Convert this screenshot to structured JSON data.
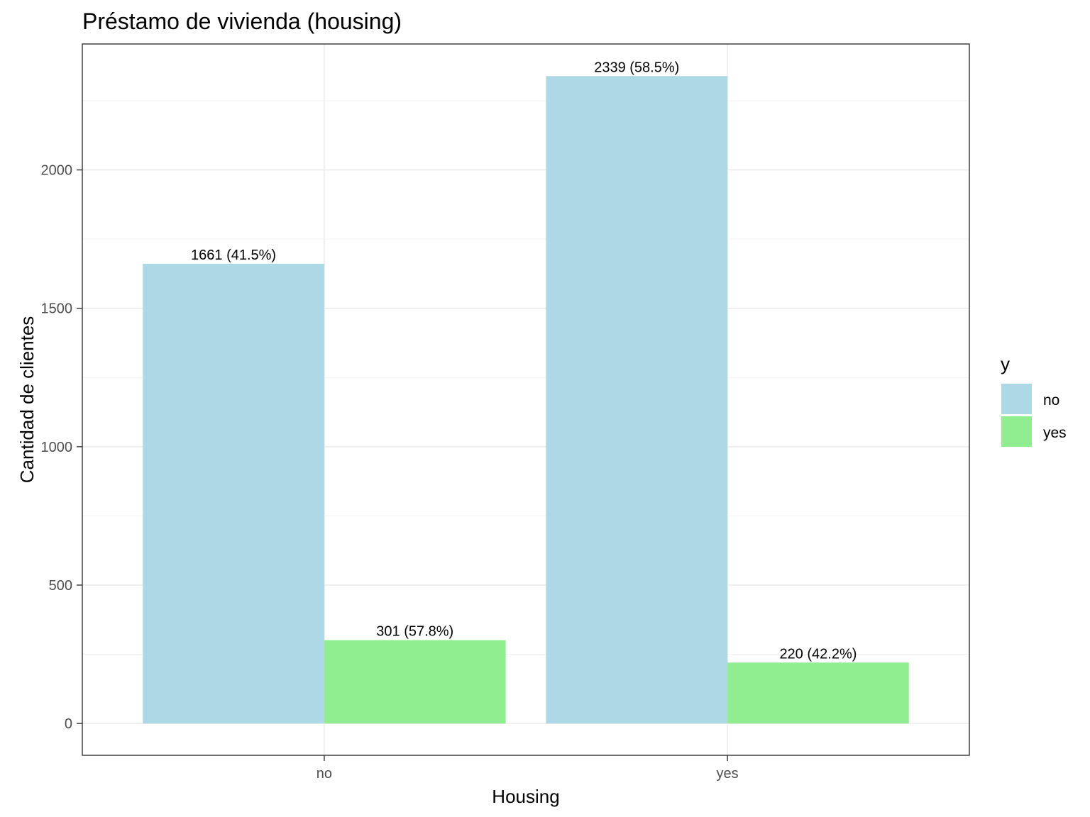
{
  "chart_data": {
    "type": "bar",
    "title": "Préstamo de vivienda (housing)",
    "xlabel": "Housing",
    "ylabel": "Cantidad de clientes",
    "categories": [
      "no",
      "yes"
    ],
    "ylim": [
      -115,
      2455
    ],
    "yticks": [
      0,
      500,
      1000,
      1500,
      2000
    ],
    "grid": true,
    "legend": {
      "title": "y",
      "placement": "right",
      "entries": [
        "no",
        "yes"
      ]
    },
    "series": [
      {
        "name": "no",
        "color": "#add8e6",
        "values": [
          1661,
          2339
        ],
        "labels": [
          "1661 (41.5%)",
          "2339 (58.5%)"
        ]
      },
      {
        "name": "yes",
        "color": "#90ee90",
        "values": [
          301,
          220
        ],
        "labels": [
          "301 (57.8%)",
          "220 (42.2%)"
        ]
      }
    ]
  }
}
